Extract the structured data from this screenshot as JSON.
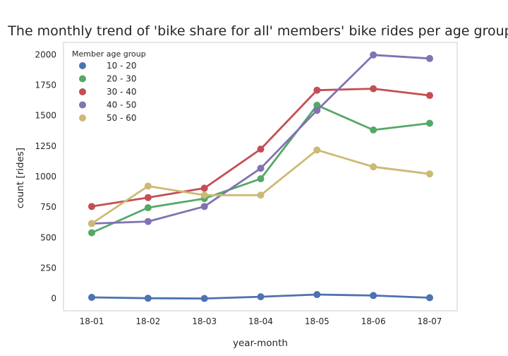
{
  "chart_data": {
    "type": "line",
    "title": "The monthly trend of 'bike share for all' members' bike rides per age group",
    "xlabel": "year-month",
    "ylabel": "count [rides]",
    "categories": [
      "18-01",
      "18-02",
      "18-03",
      "18-04",
      "18-05",
      "18-06",
      "18-07"
    ],
    "ylim": [
      -100,
      2100
    ],
    "yticks": [
      0,
      250,
      500,
      750,
      1000,
      1250,
      1500,
      1750,
      2000
    ],
    "grid": false,
    "legend": {
      "title": "Member age group",
      "placement": "top-left"
    },
    "series": [
      {
        "name": "10 - 20",
        "color": "#4c72b0",
        "values": [
          10,
          3,
          1,
          15,
          33,
          25,
          7
        ]
      },
      {
        "name": "20 - 30",
        "color": "#55a868",
        "values": [
          540,
          745,
          820,
          982,
          1585,
          1382,
          1437
        ]
      },
      {
        "name": "30 - 40",
        "color": "#c44e52",
        "values": [
          755,
          828,
          905,
          1225,
          1708,
          1720,
          1665
        ]
      },
      {
        "name": "40 - 50",
        "color": "#8172b2",
        "values": [
          615,
          632,
          755,
          1068,
          1543,
          1997,
          1968
        ]
      },
      {
        "name": "50 - 60",
        "color": "#ccb974",
        "values": [
          615,
          922,
          848,
          848,
          1218,
          1080,
          1022
        ]
      }
    ]
  }
}
